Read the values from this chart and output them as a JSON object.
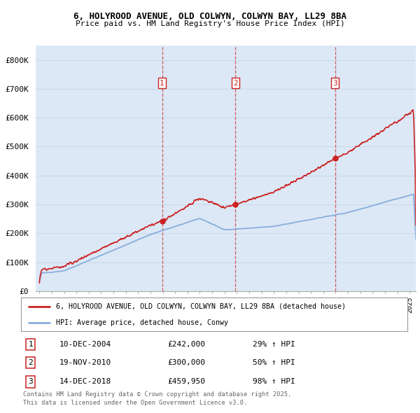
{
  "title1": "6, HOLYROOD AVENUE, OLD COLWYN, COLWYN BAY, LL29 8BA",
  "title2": "Price paid vs. HM Land Registry's House Price Index (HPI)",
  "ylim": [
    0,
    850000
  ],
  "yticks": [
    0,
    100000,
    200000,
    300000,
    400000,
    500000,
    600000,
    700000,
    800000
  ],
  "ytick_labels": [
    "£0",
    "£100K",
    "£200K",
    "£300K",
    "£400K",
    "£500K",
    "£600K",
    "£700K",
    "£800K"
  ],
  "hpi_color": "#88aedd",
  "price_color": "#cc2222",
  "vline_color": "#cc4444",
  "background_color": "#dce8f5",
  "fig_bg": "#ffffff",
  "grid_color": "#c8d8e8",
  "sales": [
    {
      "label": "1",
      "date_num": 2004.94,
      "price": 242000,
      "pct": "29%",
      "date_str": "10-DEC-2004"
    },
    {
      "label": "2",
      "date_num": 2010.89,
      "price": 300000,
      "pct": "50%",
      "date_str": "19-NOV-2010"
    },
    {
      "label": "3",
      "date_num": 2018.96,
      "price": 459950,
      "pct": "98%",
      "date_str": "14-DEC-2018"
    }
  ],
  "legend_line1": "6, HOLYROOD AVENUE, OLD COLWYN, COLWYN BAY, LL29 8BA (detached house)",
  "legend_line2": "HPI: Average price, detached house, Conwy",
  "footer1": "Contains HM Land Registry data © Crown copyright and database right 2025.",
  "footer2": "This data is licensed under the Open Government Licence v3.0.",
  "xlim_start": 1995.0,
  "xlim_end": 2025.5,
  "xticks_start": 1995,
  "xticks_end": 2025
}
